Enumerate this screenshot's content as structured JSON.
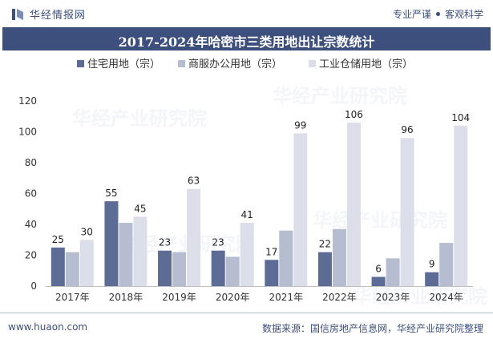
{
  "header": {
    "brand": "华经情报网",
    "slogan_left": "专业严谨",
    "slogan_right": "客观科学"
  },
  "title": "2017-2024年哈密市三类用地出让宗数统计",
  "footer": {
    "url": "www.huaon.com",
    "source": "数据来源：国信房地产信息网，华经产业研究院整理"
  },
  "watermark": "华经产业研究院",
  "colors": {
    "accent": "#3c4f7d"
  },
  "chart_data": {
    "type": "bar",
    "categories": [
      "2017年",
      "2018年",
      "2019年",
      "2020年",
      "2021年",
      "2022年",
      "2023年",
      "2024年"
    ],
    "ylim": [
      0,
      120
    ],
    "yticks": [
      0,
      20,
      40,
      60,
      80,
      100,
      120
    ],
    "legend_position": "top",
    "series": [
      {
        "name": "住宅用地（宗）",
        "color": "#5d6c95",
        "values": [
          25,
          55,
          23,
          23,
          17,
          22,
          6,
          9
        ],
        "labels": true
      },
      {
        "name": "商服办公用地（宗）",
        "color": "#b6bdd1",
        "values": [
          22,
          41,
          22,
          19,
          36,
          37,
          18,
          28
        ],
        "labels": false
      },
      {
        "name": "工业仓储用地（宗）",
        "color": "#dcdfea",
        "values": [
          30,
          45,
          63,
          41,
          99,
          106,
          96,
          104
        ],
        "labels": true
      }
    ]
  }
}
